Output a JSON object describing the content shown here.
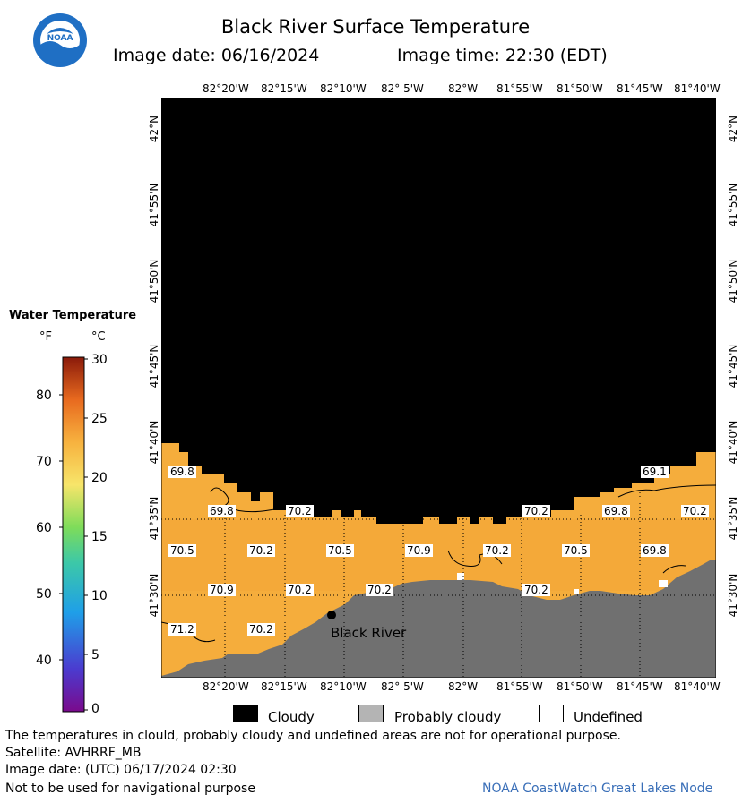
{
  "header": {
    "title": "Black River Surface Temperature",
    "image_date_label": "Image date: 06/16/2024",
    "image_time_label": "Image time: 22:30 (EDT)",
    "logo_text": "NOAA"
  },
  "map": {
    "longitude_labels": [
      "82°20'W",
      "82°15'W",
      "82°10'W",
      "82° 5'W",
      "82°W",
      "81°55'W",
      "81°50'W",
      "81°45'W",
      "81°40'W"
    ],
    "latitude_labels": [
      "42°N",
      "41°55'N",
      "41°50'N",
      "41°45'N",
      "41°40'N",
      "41°35'N",
      "41°30'N"
    ],
    "place_label": "Black River",
    "temperature_labels": [
      "69.8",
      "69.8",
      "70.2",
      "70.2",
      "69.8",
      "70.2",
      "69.1",
      "70.5",
      "70.2",
      "70.5",
      "70.9",
      "70.2",
      "70.5",
      "69.8",
      "70.9",
      "70.2",
      "70.2",
      "70.2",
      "71.2",
      "70.2"
    ],
    "colors": {
      "cloud": "#000000",
      "land": "#707070",
      "water": "#f5ad3c",
      "grid": "#000000"
    }
  },
  "colorbar": {
    "title": "Water Temperature",
    "unit_f": "°F",
    "unit_c": "°C",
    "f_ticks": [
      "80",
      "70",
      "60",
      "50",
      "40"
    ],
    "c_ticks": [
      "30",
      "25",
      "20",
      "15",
      "10",
      "5",
      "0"
    ],
    "range_c": [
      0,
      30
    ]
  },
  "legend": {
    "items": [
      {
        "label": "Cloudy",
        "color": "#000000"
      },
      {
        "label": "Probably cloudy",
        "color": "#b4b4b4"
      },
      {
        "label": "Undefined",
        "color": "#ffffff"
      }
    ]
  },
  "footer": {
    "disclaimer": "The temperatures in clould, probably cloudy and undefined areas are not for operational purpose.",
    "satellite": "Satellite: AVHRRF_MB",
    "utc_date": "Image date: (UTC) 06/17/2024  02:30",
    "nav_warning": "Not to be used for navigational purpose",
    "credit": "NOAA CoastWatch Great Lakes Node"
  }
}
